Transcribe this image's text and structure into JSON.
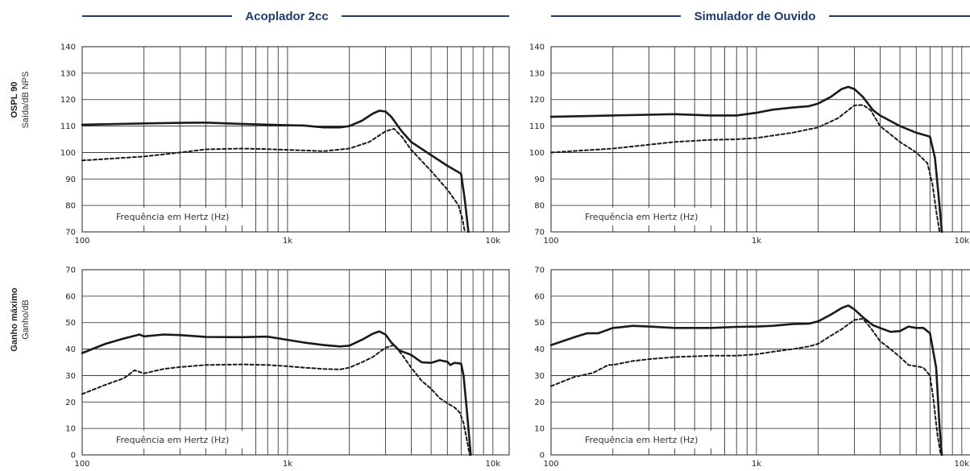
{
  "colors": {
    "header": "#1f3a6e",
    "grid": "#222222",
    "curve": "#1a1a1a"
  },
  "columns": [
    "Acoplador 2cc",
    "Simulador de Ouvido"
  ],
  "rows": [
    {
      "title": "OSPL 90",
      "subtitle": "Saída/dB NPS"
    },
    {
      "title": "Ganho máximo",
      "subtitle": "Ganho/dB"
    }
  ],
  "chart_data": [
    {
      "type": "line",
      "column": "Acoplador 2cc",
      "row": "OSPL 90",
      "xscale": "log",
      "xlim": [
        100,
        12000
      ],
      "ylim": [
        70,
        140
      ],
      "yticks": [
        70,
        80,
        90,
        100,
        110,
        120,
        130,
        140
      ],
      "xticklabels": [
        "100",
        "1k",
        "10k"
      ],
      "xlabel": "Frequência em Hertz (Hz)",
      "series": [
        {
          "style": "solid",
          "x": [
            100,
            200,
            300,
            400,
            600,
            1000,
            1200,
            1500,
            1800,
            2000,
            2300,
            2600,
            2800,
            3000,
            3200,
            3600,
            4000,
            5000,
            6000,
            7000,
            7300,
            7600
          ],
          "y": [
            110.5,
            111,
            111.2,
            111.3,
            110.8,
            110.3,
            110.2,
            109.5,
            109.5,
            110,
            112,
            114.7,
            115.8,
            115.5,
            113.5,
            108,
            104,
            99,
            95,
            92,
            82,
            70
          ]
        },
        {
          "style": "dashed",
          "x": [
            100,
            200,
            300,
            400,
            600,
            800,
            1000,
            1500,
            2000,
            2500,
            3000,
            3300,
            3600,
            4000,
            5000,
            6000,
            6800,
            7100,
            7300
          ],
          "y": [
            97,
            98.5,
            100,
            101.2,
            101.5,
            101.3,
            101,
            100.5,
            101.5,
            104,
            108,
            109,
            106,
            101,
            93,
            86,
            80,
            75,
            70
          ]
        }
      ]
    },
    {
      "type": "line",
      "column": "Simulador de Ouvido",
      "row": "OSPL 90",
      "xscale": "log",
      "xlim": [
        100,
        12000
      ],
      "ylim": [
        70,
        140
      ],
      "yticks": [
        70,
        80,
        90,
        100,
        110,
        120,
        130,
        140
      ],
      "xticklabels": [
        "100",
        "1k",
        "10k"
      ],
      "xlabel": "Frequência em Hertz (Hz)",
      "series": [
        {
          "style": "solid",
          "x": [
            100,
            200,
            400,
            600,
            800,
            1000,
            1200,
            1500,
            1800,
            2000,
            2300,
            2600,
            2800,
            3000,
            3300,
            3700,
            4000,
            5000,
            6000,
            7000,
            7400,
            7700,
            8000
          ],
          "y": [
            113.5,
            114,
            114.5,
            114,
            114,
            115,
            116.2,
            117,
            117.5,
            118.5,
            121,
            124,
            124.8,
            124,
            121,
            116,
            114,
            110,
            107.5,
            106,
            98,
            84,
            70
          ]
        },
        {
          "style": "dashed",
          "x": [
            100,
            200,
            400,
            600,
            800,
            1000,
            1500,
            2000,
            2500,
            3000,
            3300,
            3600,
            4000,
            5000,
            6000,
            6800,
            7200,
            7500,
            7800
          ],
          "y": [
            100,
            101.5,
            104,
            104.8,
            105,
            105.5,
            107.5,
            109.5,
            113,
            117.8,
            118,
            116,
            110,
            104,
            100,
            96,
            88,
            78,
            70
          ]
        }
      ]
    },
    {
      "type": "line",
      "column": "Acoplador 2cc",
      "row": "Ganho máximo",
      "xscale": "log",
      "xlim": [
        100,
        12000
      ],
      "ylim": [
        0,
        70
      ],
      "yticks": [
        0,
        10,
        20,
        30,
        40,
        50,
        60,
        70
      ],
      "xticklabels": [
        "100",
        "1k",
        "10k"
      ],
      "xlabel": "Frequência em Hertz (Hz)",
      "series": [
        {
          "style": "solid",
          "x": [
            100,
            130,
            160,
            190,
            200,
            250,
            300,
            400,
            600,
            800,
            1000,
            1200,
            1500,
            1800,
            2000,
            2300,
            2600,
            2800,
            3000,
            3200,
            3500,
            4000,
            4500,
            5000,
            5500,
            6000,
            6200,
            6500,
            7000,
            7200,
            7500,
            7800
          ],
          "y": [
            38.5,
            42,
            44,
            45.5,
            44.8,
            45.5,
            45.3,
            44.6,
            44.5,
            44.7,
            43.5,
            42.5,
            41.5,
            41,
            41.3,
            43.5,
            45.8,
            46.7,
            45.5,
            42.5,
            39.5,
            37.8,
            35,
            34.8,
            35.8,
            35.2,
            34,
            34.8,
            34.5,
            30,
            15,
            0
          ]
        },
        {
          "style": "dashed",
          "x": [
            100,
            130,
            160,
            180,
            200,
            250,
            300,
            400,
            600,
            800,
            1000,
            1200,
            1500,
            1800,
            2000,
            2300,
            2600,
            3000,
            3300,
            3600,
            4000,
            4500,
            5000,
            5500,
            6000,
            6500,
            6900,
            7200,
            7500,
            7700
          ],
          "y": [
            23,
            26.5,
            29,
            32,
            30.8,
            32.5,
            33.2,
            34,
            34.2,
            34,
            33.5,
            33,
            32.5,
            32.3,
            33,
            35,
            37,
            40.5,
            41.5,
            38,
            33,
            28,
            25,
            21.5,
            19.5,
            18,
            16,
            12,
            5,
            0
          ]
        }
      ]
    },
    {
      "type": "line",
      "column": "Simulador de Ouvido",
      "row": "Ganho máximo",
      "xscale": "log",
      "xlim": [
        100,
        12000
      ],
      "ylim": [
        0,
        70
      ],
      "yticks": [
        0,
        10,
        20,
        30,
        40,
        50,
        60,
        70
      ],
      "xticklabels": [
        "100",
        "1k",
        "10k"
      ],
      "xlabel": "Frequência em Hertz (Hz)",
      "series": [
        {
          "style": "solid",
          "x": [
            100,
            130,
            150,
            170,
            200,
            220,
            250,
            300,
            400,
            600,
            800,
            1000,
            1200,
            1500,
            1800,
            2000,
            2300,
            2600,
            2800,
            3000,
            3300,
            3700,
            4000,
            4500,
            5000,
            5500,
            6000,
            6500,
            7000,
            7500,
            7800,
            8000
          ],
          "y": [
            41.5,
            44.5,
            46,
            46,
            48,
            48.3,
            48.8,
            48.5,
            48,
            48,
            48.4,
            48.5,
            48.8,
            49.5,
            49.6,
            50.5,
            53,
            55.5,
            56.5,
            55,
            52,
            49,
            48,
            46.5,
            46.8,
            48.5,
            48,
            48,
            46,
            33,
            10,
            0
          ]
        },
        {
          "style": "dashed",
          "x": [
            100,
            130,
            160,
            190,
            200,
            250,
            300,
            400,
            600,
            800,
            1000,
            1200,
            1500,
            1800,
            2000,
            2300,
            2600,
            3000,
            3300,
            3600,
            4000,
            4500,
            5000,
            5500,
            6000,
            6500,
            7000,
            7300,
            7600,
            7900
          ],
          "y": [
            26,
            29.5,
            31,
            34,
            34,
            35.5,
            36.2,
            37,
            37.5,
            37.5,
            38,
            39,
            40,
            41,
            42,
            45,
            47.5,
            51,
            51.5,
            48,
            43,
            40,
            37,
            34,
            33.5,
            33,
            30,
            20,
            8,
            0
          ]
        }
      ]
    }
  ]
}
